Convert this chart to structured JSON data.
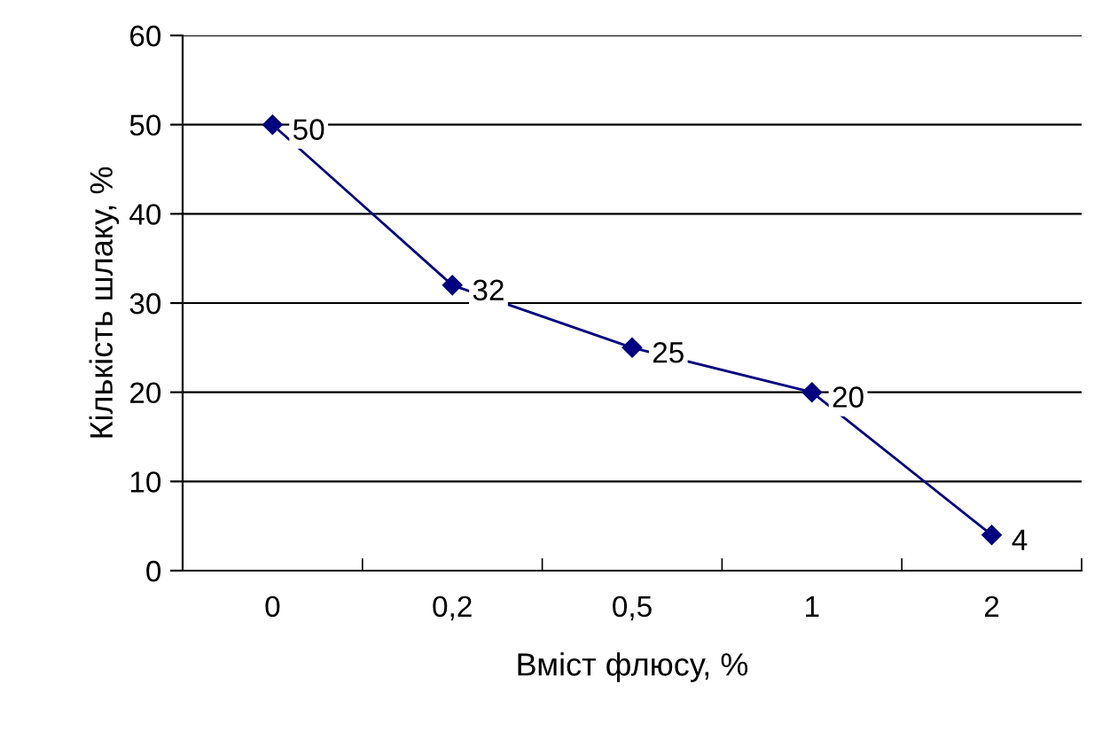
{
  "chart_data": {
    "type": "line",
    "xlabel": "Вміст флюсу, %",
    "ylabel": "Кількість шлаку, %",
    "categories": [
      "0",
      "0,2",
      "0,5",
      "1",
      "2"
    ],
    "series": [
      {
        "color": "#000080",
        "values": [
          50,
          32,
          25,
          20,
          4
        ]
      }
    ],
    "ylim": [
      0,
      60
    ],
    "yticks": [
      0,
      10,
      20,
      30,
      40,
      50,
      60
    ],
    "grid": "y",
    "marker": "diamond",
    "line_style": "solid",
    "data_labels": true
  }
}
